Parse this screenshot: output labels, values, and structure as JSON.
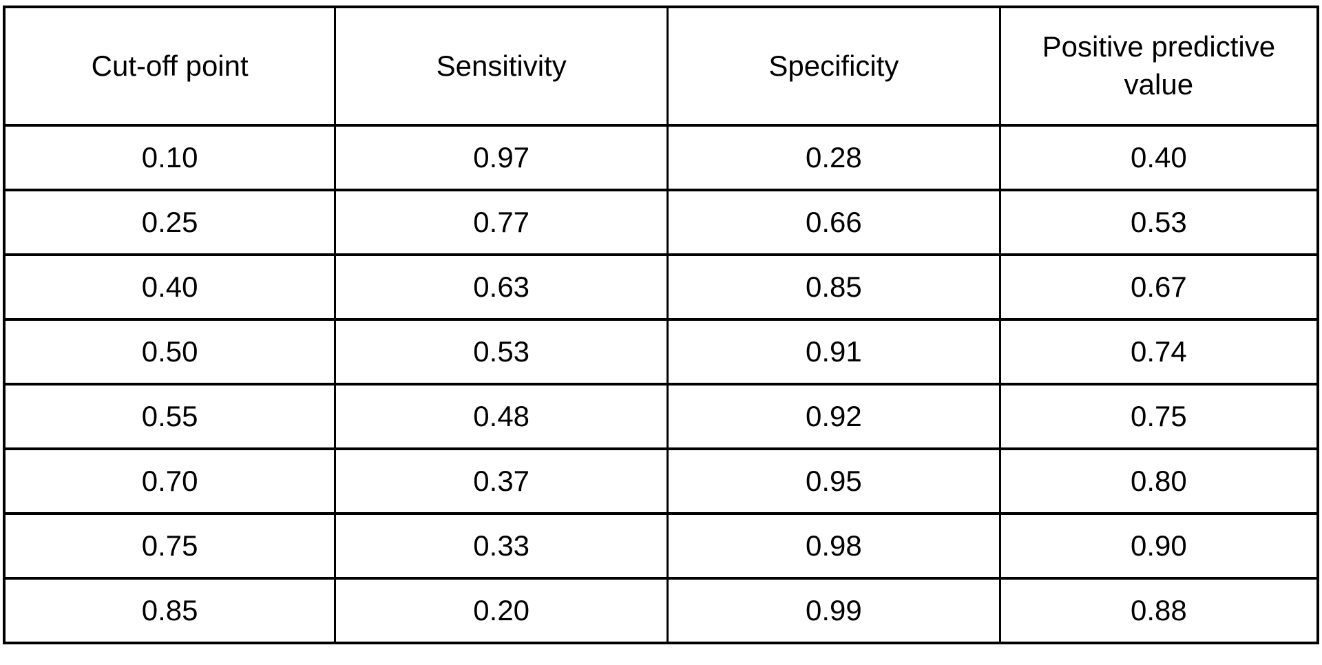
{
  "page": {
    "background_color": "#ffffff",
    "border_color": "#000000",
    "text_color": "#000000"
  },
  "chart_data": {
    "type": "table",
    "columns": [
      "Cut-off point",
      "Sensitivity",
      "Specificity",
      "Positive predictive value"
    ],
    "rows": [
      [
        "0.10",
        "0.97",
        "0.28",
        "0.40"
      ],
      [
        "0.25",
        "0.77",
        "0.66",
        "0.53"
      ],
      [
        "0.40",
        "0.63",
        "0.85",
        "0.67"
      ],
      [
        "0.50",
        "0.53",
        "0.91",
        "0.74"
      ],
      [
        "0.55",
        "0.48",
        "0.92",
        "0.75"
      ],
      [
        "0.70",
        "0.37",
        "0.95",
        "0.80"
      ],
      [
        "0.75",
        "0.33",
        "0.98",
        "0.90"
      ],
      [
        "0.85",
        "0.20",
        "0.99",
        "0.88"
      ]
    ],
    "layout": {
      "grid": "all-borders",
      "header_rows": 1,
      "cell_alignment": "center"
    }
  }
}
